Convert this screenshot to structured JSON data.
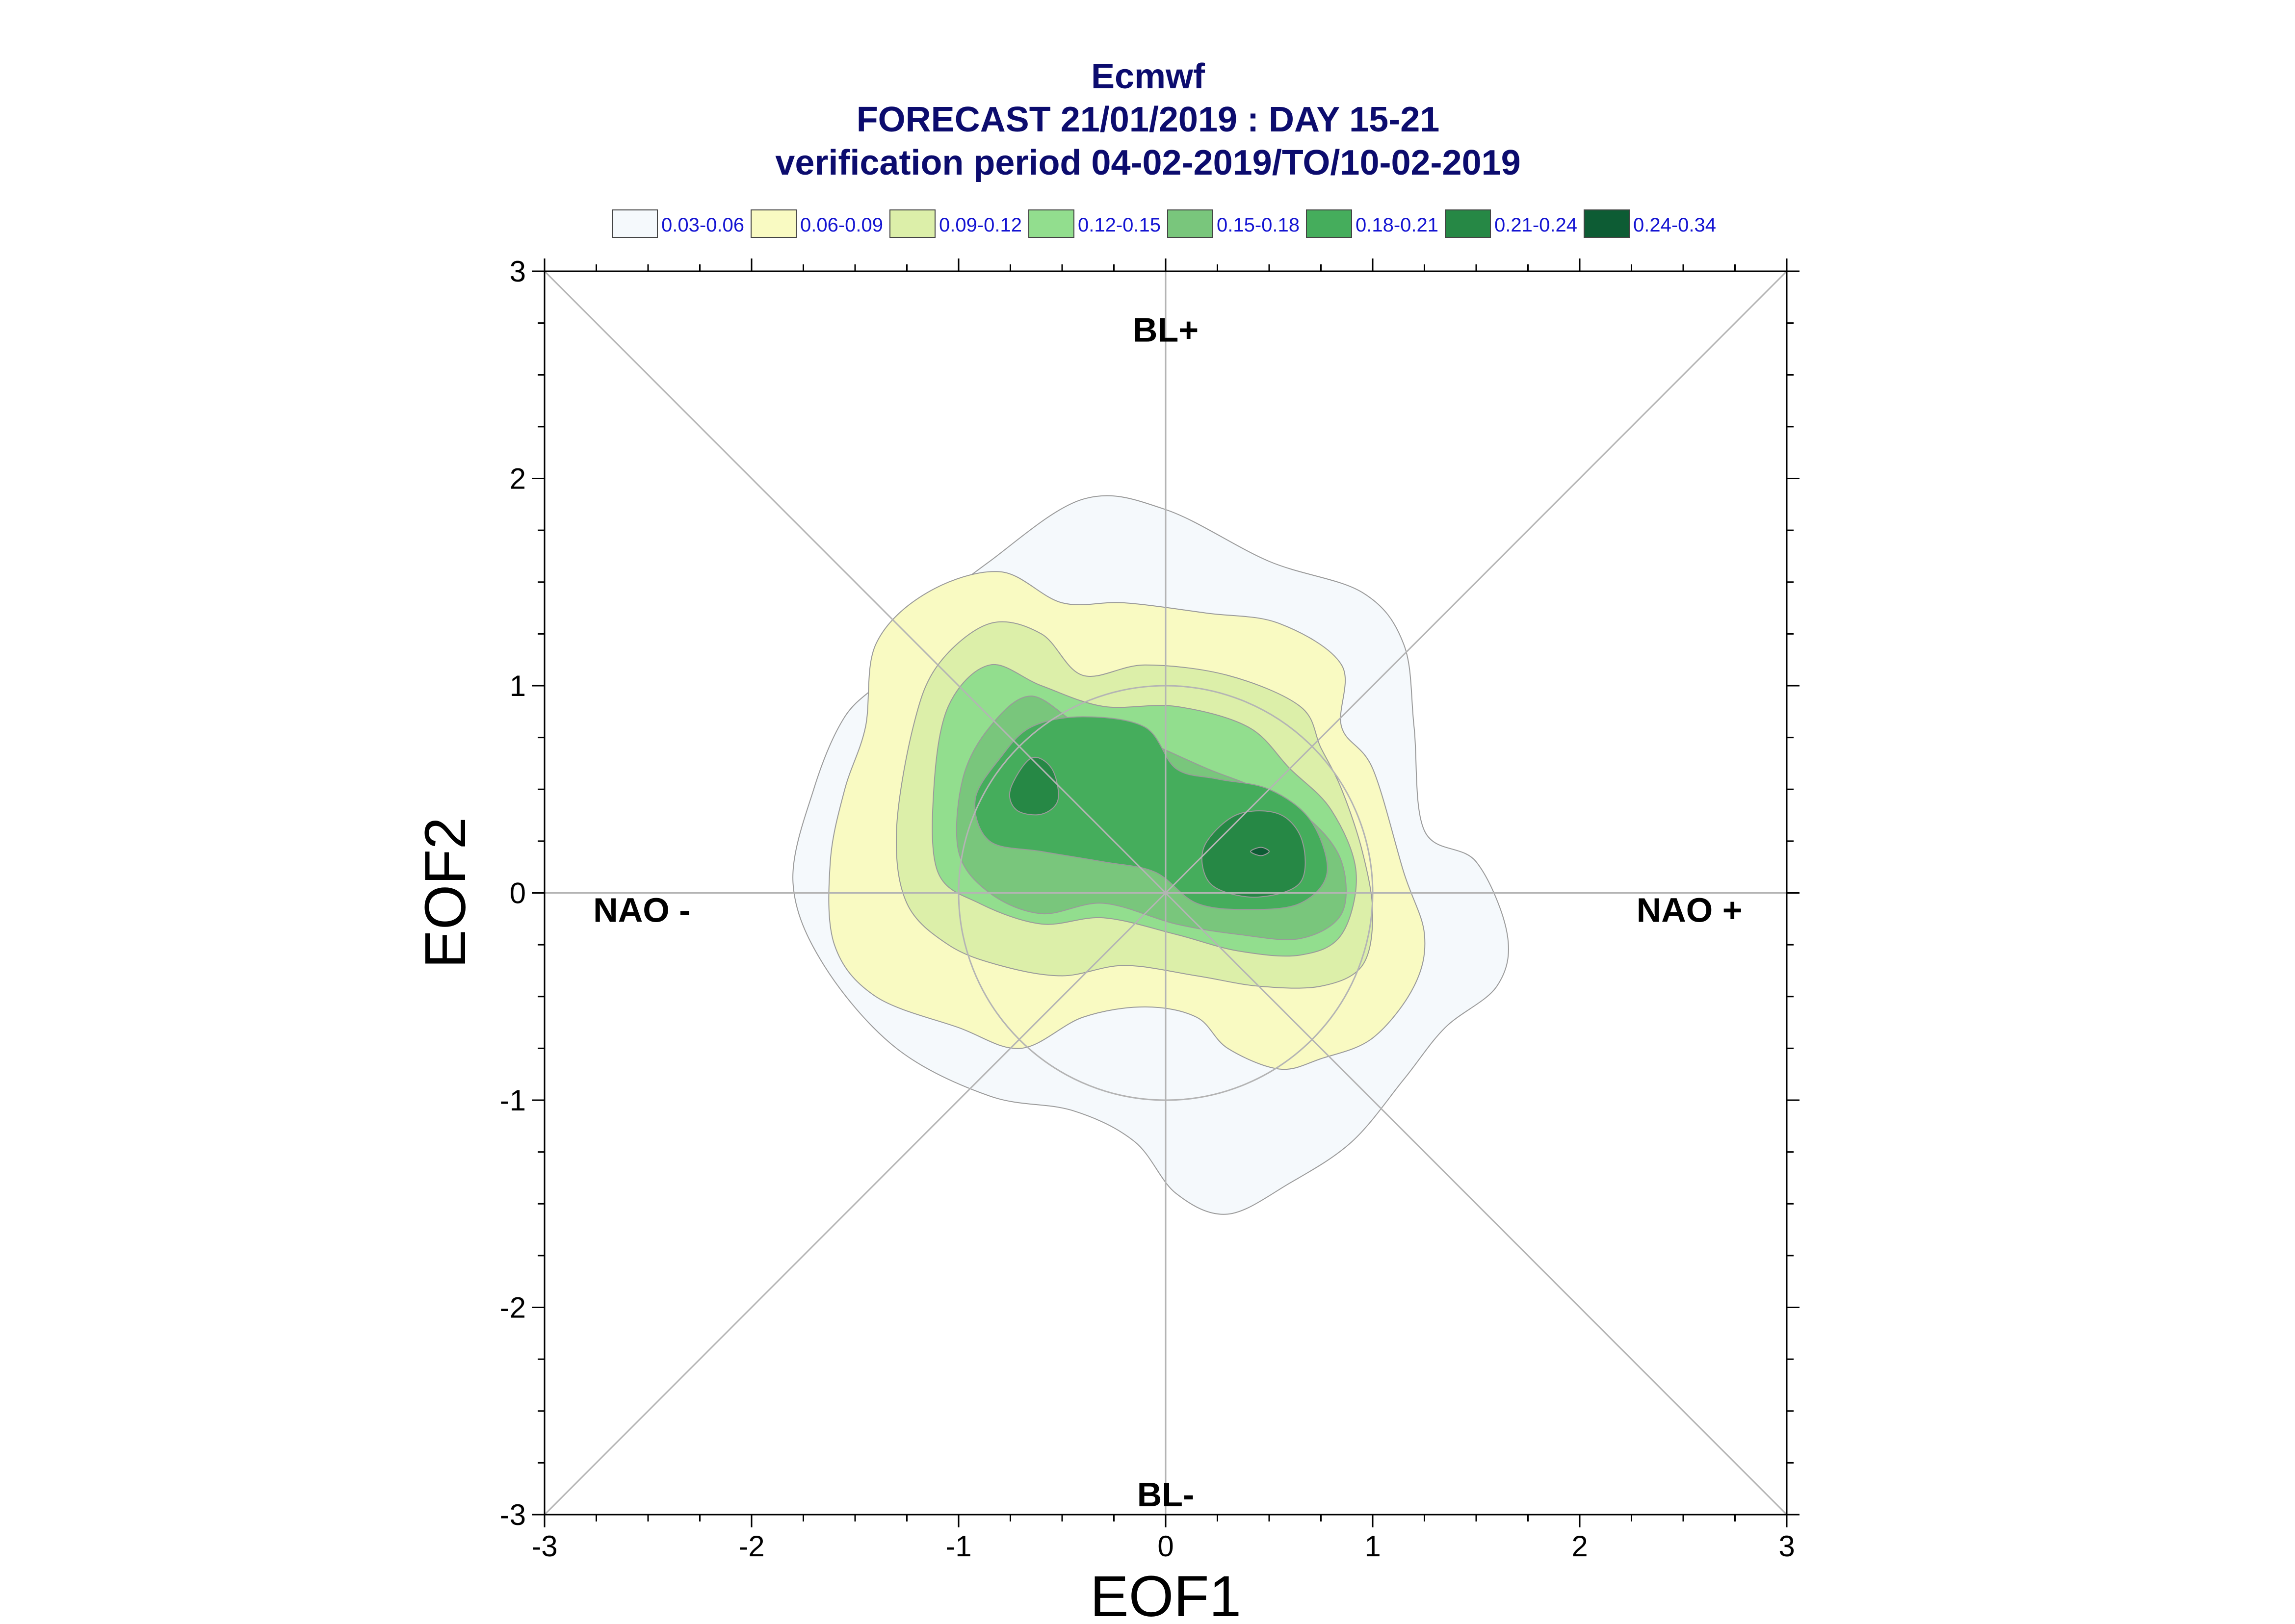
{
  "chart_data": {
    "type": "contour",
    "title": [
      "Ecmwf",
      "FORECAST 21/01/2019 : DAY 15-21",
      "verification period 04-02-2019/TO/10-02-2019"
    ],
    "xlabel": "EOF1",
    "ylabel": "EOF2",
    "xlim": [
      -3,
      3
    ],
    "ylim": [
      -3,
      3
    ],
    "xticks": [
      "-3",
      "-2",
      "-1",
      "0",
      "1",
      "2",
      "3"
    ],
    "yticks": [
      "-3",
      "-2",
      "-1",
      "0",
      "1",
      "2",
      "3"
    ],
    "grid": false,
    "reference_circle_radius": 1,
    "region_labels": [
      {
        "text": "BL+",
        "x": 0,
        "y": 2.72
      },
      {
        "text": "BL-",
        "x": 0,
        "y": -2.9
      },
      {
        "text": "NAO -",
        "x": -2.53,
        "y": -0.08
      },
      {
        "text": "NAO +",
        "x": 2.53,
        "y": -0.08
      }
    ],
    "legend": {
      "placement": "top",
      "entries": [
        {
          "label": "0.03-0.06",
          "color": "#f5f9fc"
        },
        {
          "label": "0.06-0.09",
          "color": "#f9fac2"
        },
        {
          "label": "0.09-0.12",
          "color": "#dcefa9"
        },
        {
          "label": "0.12-0.15",
          "color": "#92de8e"
        },
        {
          "label": "0.15-0.18",
          "color": "#79c67c"
        },
        {
          "label": "0.18-0.21",
          "color": "#45ad5c"
        },
        {
          "label": "0.21-0.24",
          "color": "#268845"
        },
        {
          "label": "0.24-0.34",
          "color": "#0d5c34"
        }
      ]
    },
    "contours": [
      {
        "level": "0.03-0.06",
        "color": "#f5f9fc",
        "points": [
          [
            -1.15,
            1.35
          ],
          [
            -0.85,
            1.6
          ],
          [
            -0.4,
            1.9
          ],
          [
            0,
            1.85
          ],
          [
            0.5,
            1.6
          ],
          [
            0.95,
            1.45
          ],
          [
            1.15,
            1.2
          ],
          [
            1.2,
            0.8
          ],
          [
            1.25,
            0.3
          ],
          [
            1.5,
            0.15
          ],
          [
            1.65,
            -0.2
          ],
          [
            1.6,
            -0.45
          ],
          [
            1.35,
            -0.65
          ],
          [
            1.15,
            -0.9
          ],
          [
            0.9,
            -1.2
          ],
          [
            0.6,
            -1.4
          ],
          [
            0.3,
            -1.55
          ],
          [
            0.05,
            -1.45
          ],
          [
            -0.15,
            -1.2
          ],
          [
            -0.45,
            -1.05
          ],
          [
            -0.85,
            -0.98
          ],
          [
            -1.3,
            -0.75
          ],
          [
            -1.65,
            -0.35
          ],
          [
            -1.8,
            0.05
          ],
          [
            -1.7,
            0.5
          ],
          [
            -1.55,
            0.85
          ],
          [
            -1.35,
            1.05
          ]
        ]
      },
      {
        "level": "0.06-0.09",
        "color": "#f9fac2",
        "points": [
          [
            -1.4,
            1.2
          ],
          [
            -1.15,
            1.45
          ],
          [
            -0.8,
            1.55
          ],
          [
            -0.5,
            1.4
          ],
          [
            -0.2,
            1.4
          ],
          [
            0.2,
            1.35
          ],
          [
            0.55,
            1.3
          ],
          [
            0.85,
            1.1
          ],
          [
            0.85,
            0.8
          ],
          [
            1.0,
            0.6
          ],
          [
            1.15,
            0.1
          ],
          [
            1.25,
            -0.2
          ],
          [
            1.2,
            -0.45
          ],
          [
            1.0,
            -0.7
          ],
          [
            0.75,
            -0.8
          ],
          [
            0.55,
            -0.85
          ],
          [
            0.3,
            -0.75
          ],
          [
            0.15,
            -0.6
          ],
          [
            -0.1,
            -0.55
          ],
          [
            -0.4,
            -0.6
          ],
          [
            -0.7,
            -0.75
          ],
          [
            -1.0,
            -0.65
          ],
          [
            -1.4,
            -0.5
          ],
          [
            -1.6,
            -0.25
          ],
          [
            -1.62,
            0.15
          ],
          [
            -1.55,
            0.5
          ],
          [
            -1.45,
            0.8
          ]
        ]
      },
      {
        "level": "0.09-0.12",
        "color": "#dcefa9",
        "points": [
          [
            -1.1,
            1.1
          ],
          [
            -0.85,
            1.3
          ],
          [
            -0.6,
            1.25
          ],
          [
            -0.4,
            1.05
          ],
          [
            -0.1,
            1.1
          ],
          [
            0.3,
            1.05
          ],
          [
            0.65,
            0.9
          ],
          [
            0.75,
            0.7
          ],
          [
            0.85,
            0.5
          ],
          [
            0.95,
            0.2
          ],
          [
            1.0,
            -0.1
          ],
          [
            0.95,
            -0.35
          ],
          [
            0.75,
            -0.45
          ],
          [
            0.45,
            -0.45
          ],
          [
            0.15,
            -0.4
          ],
          [
            -0.2,
            -0.35
          ],
          [
            -0.5,
            -0.4
          ],
          [
            -0.8,
            -0.35
          ],
          [
            -1.05,
            -0.25
          ],
          [
            -1.25,
            -0.05
          ],
          [
            -1.3,
            0.3
          ],
          [
            -1.22,
            0.8
          ]
        ]
      },
      {
        "level": "0.12-0.15",
        "color": "#92de8e",
        "points": [
          [
            -1.05,
            0.9
          ],
          [
            -0.85,
            1.1
          ],
          [
            -0.6,
            1.0
          ],
          [
            -0.3,
            0.9
          ],
          [
            0.05,
            0.9
          ],
          [
            0.4,
            0.8
          ],
          [
            0.6,
            0.6
          ],
          [
            0.8,
            0.4
          ],
          [
            0.92,
            0.1
          ],
          [
            0.85,
            -0.2
          ],
          [
            0.65,
            -0.3
          ],
          [
            0.35,
            -0.28
          ],
          [
            0.05,
            -0.2
          ],
          [
            -0.3,
            -0.12
          ],
          [
            -0.6,
            -0.15
          ],
          [
            -0.9,
            -0.05
          ],
          [
            -1.1,
            0.1
          ],
          [
            -1.12,
            0.5
          ]
        ]
      },
      {
        "level": "0.15-0.18",
        "color": "#79c67c",
        "points": [
          [
            -0.85,
            0.8
          ],
          [
            -0.65,
            0.95
          ],
          [
            -0.4,
            0.8
          ],
          [
            -0.15,
            0.75
          ],
          [
            0.2,
            0.6
          ],
          [
            0.45,
            0.5
          ],
          [
            0.7,
            0.35
          ],
          [
            0.85,
            0.15
          ],
          [
            0.85,
            -0.1
          ],
          [
            0.65,
            -0.22
          ],
          [
            0.35,
            -0.2
          ],
          [
            0.05,
            -0.15
          ],
          [
            -0.3,
            -0.05
          ],
          [
            -0.6,
            -0.1
          ],
          [
            -0.85,
            0.0
          ],
          [
            -1.0,
            0.2
          ],
          [
            -0.98,
            0.55
          ]
        ]
      },
      {
        "level": "0.18-0.21",
        "color": "#45ad5c",
        "points": [
          [
            -0.8,
            0.65
          ],
          [
            -0.65,
            0.8
          ],
          [
            -0.4,
            0.85
          ],
          [
            -0.1,
            0.8
          ],
          [
            0.05,
            0.6
          ],
          [
            0.25,
            0.55
          ],
          [
            0.5,
            0.5
          ],
          [
            0.7,
            0.35
          ],
          [
            0.78,
            0.1
          ],
          [
            0.65,
            -0.05
          ],
          [
            0.4,
            -0.08
          ],
          [
            0.15,
            -0.05
          ],
          [
            -0.05,
            0.1
          ],
          [
            -0.3,
            0.15
          ],
          [
            -0.6,
            0.2
          ],
          [
            -0.85,
            0.25
          ],
          [
            -0.92,
            0.45
          ]
        ]
      },
      {
        "level": "0.21-0.24",
        "color": "#268845",
        "points": [
          [
            -0.75,
            0.5
          ],
          [
            -0.65,
            0.65
          ],
          [
            -0.55,
            0.6
          ],
          [
            -0.52,
            0.45
          ],
          [
            -0.6,
            0.38
          ],
          [
            -0.72,
            0.4
          ]
        ]
      },
      {
        "level": "0.21-0.24",
        "color": "#268845",
        "points": [
          [
            0.2,
            0.25
          ],
          [
            0.35,
            0.38
          ],
          [
            0.55,
            0.38
          ],
          [
            0.66,
            0.25
          ],
          [
            0.65,
            0.05
          ],
          [
            0.45,
            -0.02
          ],
          [
            0.25,
            0.02
          ],
          [
            0.18,
            0.12
          ]
        ]
      },
      {
        "level": "0.24-0.34",
        "color": "#0d5c34",
        "points": [
          [
            0.41,
            0.2
          ],
          [
            0.46,
            0.22
          ],
          [
            0.5,
            0.2
          ],
          [
            0.46,
            0.18
          ]
        ]
      }
    ]
  }
}
